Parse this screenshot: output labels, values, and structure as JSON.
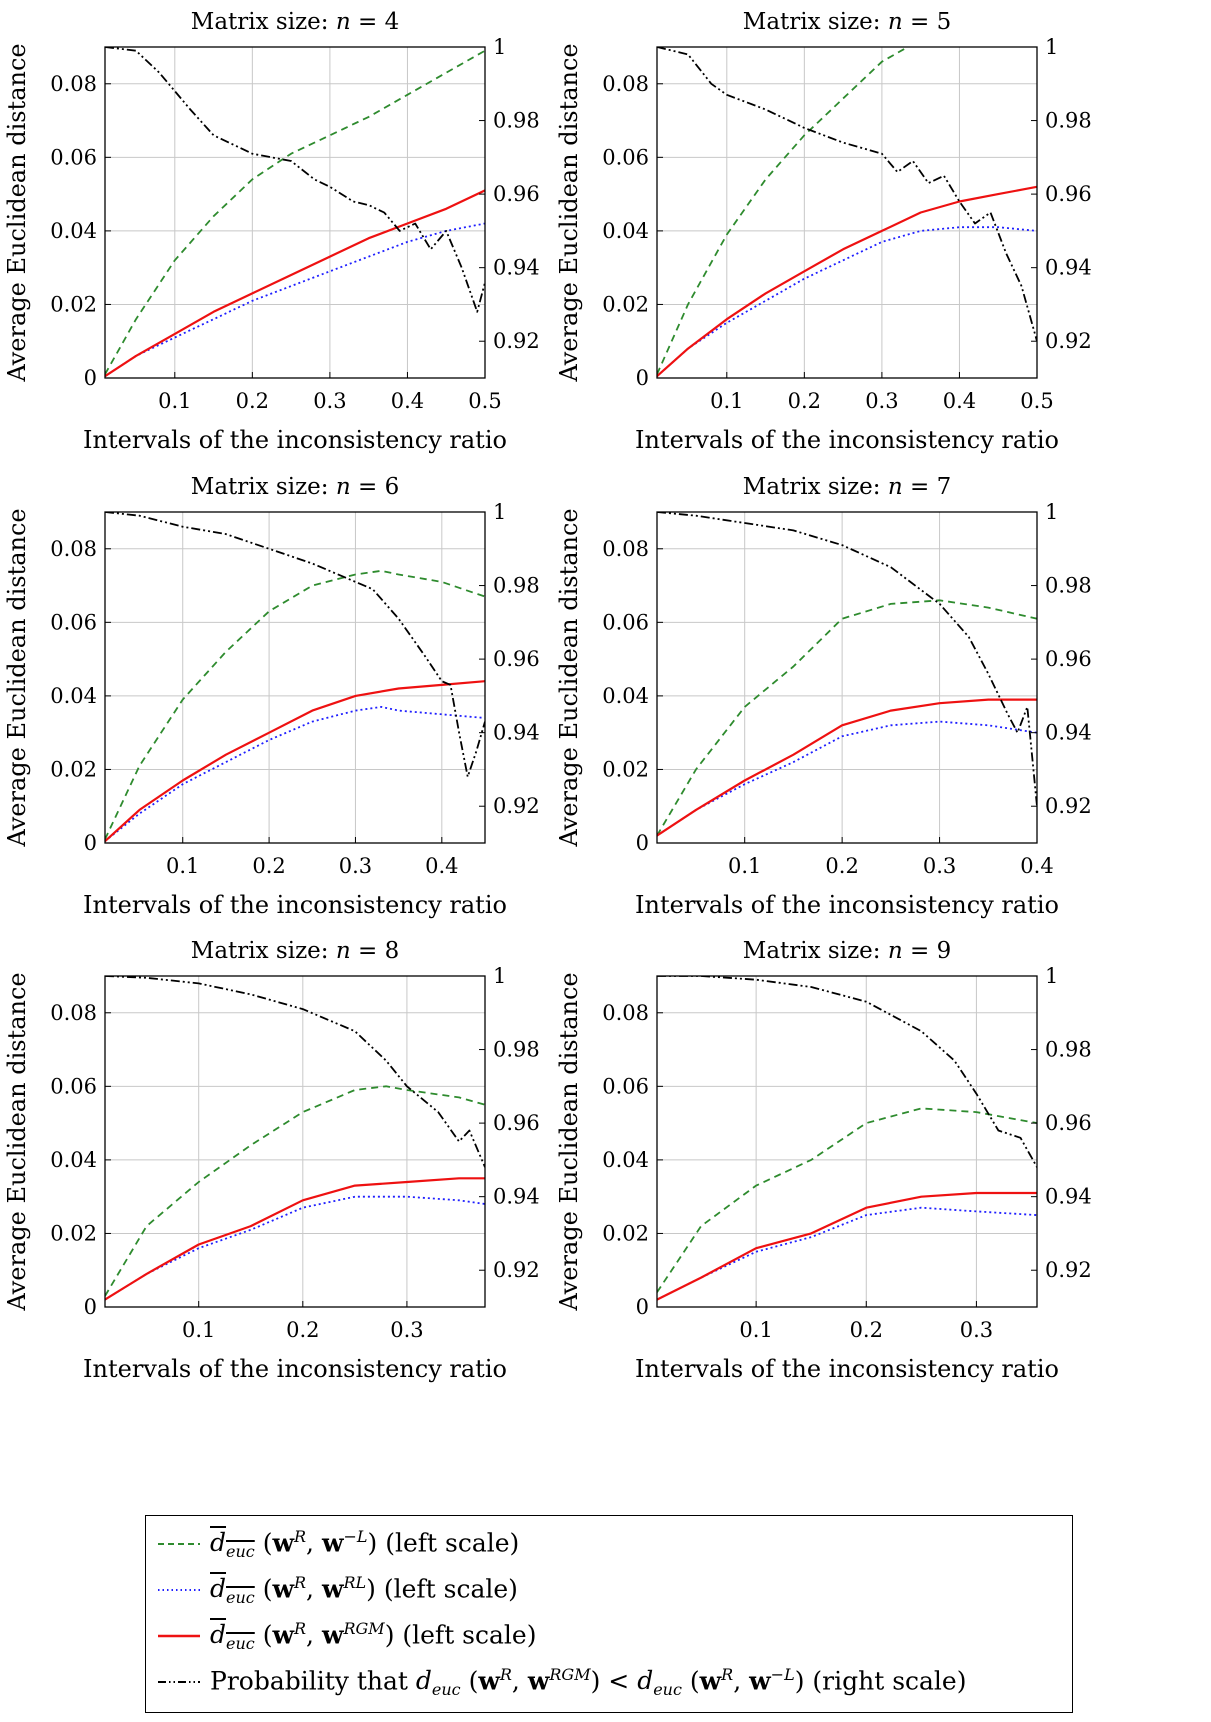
{
  "figure": {
    "xlabel": "Intervals of the inconsistency ratio",
    "ylabel": "Average Euclidean distance",
    "title_prefix": "Matrix size: ",
    "left_ticks": [
      "0",
      "0.02",
      "0.04",
      "0.06",
      "0.08"
    ],
    "right_ticks": [
      "0.92",
      "0.94",
      "0.96",
      "0.98",
      "1"
    ],
    "colors": {
      "green": "#2e8b2e",
      "blue": "#1f1fff",
      "red": "#ee1111",
      "black": "#000000"
    }
  },
  "legend": {
    "items": [
      {
        "label": "d_euc(w^R, w^{-L}) (left scale)",
        "style": "green-dashed"
      },
      {
        "label": "d_euc(w^R, w^{RL}) (left scale)",
        "style": "blue-dotted"
      },
      {
        "label": "d_euc(w^R, w^{RGM}) (left scale)",
        "style": "red-solid"
      },
      {
        "label": "Probability that d_euc(w^R, w^{RGM}) < d_euc(w^R, w^{-L}) (right scale)",
        "style": "black-dashdotdot"
      }
    ],
    "scale_left": "(left scale)",
    "scale_right": "(right scale)",
    "prob_prefix": "Probability that"
  },
  "chart_data": [
    {
      "type": "line",
      "title": "Matrix size: n = 4",
      "n": "4",
      "xlim": [
        0.01,
        0.5
      ],
      "ylim_left": [
        0,
        0.09
      ],
      "ylim_right": [
        0.91,
        1
      ],
      "x_ticks": [
        0.1,
        0.2,
        0.3,
        0.4,
        0.5
      ],
      "xlabel": "Intervals of the inconsistency ratio",
      "ylabel": "Average Euclidean distance",
      "grid": true,
      "series": [
        {
          "name": "d_euc(w^R, w^{-L})",
          "axis": "left",
          "style": "green-dashed",
          "x": [
            0.01,
            0.05,
            0.1,
            0.15,
            0.2,
            0.25,
            0.3,
            0.35,
            0.4,
            0.45,
            0.5
          ],
          "y": [
            0.001,
            0.016,
            0.032,
            0.044,
            0.054,
            0.061,
            0.066,
            0.071,
            0.077,
            0.083,
            0.089
          ]
        },
        {
          "name": "d_euc(w^R, w^{RL})",
          "axis": "left",
          "style": "blue-dotted",
          "x": [
            0.01,
            0.05,
            0.1,
            0.15,
            0.2,
            0.25,
            0.3,
            0.35,
            0.4,
            0.45,
            0.5
          ],
          "y": [
            0.0005,
            0.006,
            0.011,
            0.016,
            0.021,
            0.025,
            0.029,
            0.033,
            0.037,
            0.04,
            0.042
          ]
        },
        {
          "name": "d_euc(w^R, w^{RGM})",
          "axis": "left",
          "style": "red-solid",
          "x": [
            0.01,
            0.05,
            0.1,
            0.15,
            0.2,
            0.25,
            0.3,
            0.35,
            0.4,
            0.45,
            0.5
          ],
          "y": [
            0.0005,
            0.006,
            0.012,
            0.018,
            0.023,
            0.028,
            0.033,
            0.038,
            0.042,
            0.046,
            0.051
          ]
        },
        {
          "name": "Probability that d_euc(w^R, w^{RGM}) < d_euc(w^R, w^{-L})",
          "axis": "right",
          "style": "black-dashdotdot",
          "x": [
            0.01,
            0.05,
            0.08,
            0.1,
            0.12,
            0.15,
            0.2,
            0.25,
            0.28,
            0.3,
            0.33,
            0.35,
            0.37,
            0.39,
            0.41,
            0.43,
            0.45,
            0.47,
            0.49,
            0.5
          ],
          "y": [
            1.0,
            0.999,
            0.993,
            0.988,
            0.983,
            0.976,
            0.971,
            0.969,
            0.964,
            0.962,
            0.958,
            0.957,
            0.955,
            0.95,
            0.952,
            0.945,
            0.95,
            0.94,
            0.928,
            0.936
          ]
        }
      ]
    },
    {
      "type": "line",
      "title": "Matrix size: n = 5",
      "n": "5",
      "xlim": [
        0.01,
        0.5
      ],
      "ylim_left": [
        0,
        0.09
      ],
      "ylim_right": [
        0.91,
        1
      ],
      "x_ticks": [
        0.1,
        0.2,
        0.3,
        0.4,
        0.5
      ],
      "xlabel": "Intervals of the inconsistency ratio",
      "ylabel": "Average Euclidean distance",
      "grid": true,
      "series": [
        {
          "name": "d_euc(w^R, w^{-L})",
          "axis": "left",
          "style": "green-dashed",
          "x": [
            0.01,
            0.05,
            0.1,
            0.15,
            0.2,
            0.25,
            0.3,
            0.35,
            0.4,
            0.45,
            0.48,
            0.5
          ],
          "y": [
            0.001,
            0.02,
            0.039,
            0.054,
            0.066,
            0.076,
            0.086,
            0.092,
            0.094,
            0.093,
            0.09,
            0.091
          ]
        },
        {
          "name": "d_euc(w^R, w^{RL})",
          "axis": "left",
          "style": "blue-dotted",
          "x": [
            0.01,
            0.05,
            0.1,
            0.15,
            0.2,
            0.25,
            0.3,
            0.35,
            0.4,
            0.45,
            0.5
          ],
          "y": [
            0.0005,
            0.008,
            0.015,
            0.021,
            0.027,
            0.032,
            0.037,
            0.04,
            0.041,
            0.041,
            0.04
          ]
        },
        {
          "name": "d_euc(w^R, w^{RGM})",
          "axis": "left",
          "style": "red-solid",
          "x": [
            0.01,
            0.05,
            0.1,
            0.15,
            0.2,
            0.25,
            0.3,
            0.35,
            0.4,
            0.45,
            0.5
          ],
          "y": [
            0.0005,
            0.008,
            0.016,
            0.023,
            0.029,
            0.035,
            0.04,
            0.045,
            0.048,
            0.05,
            0.052
          ]
        },
        {
          "name": "Probability that d_euc(w^R, w^{RGM}) < d_euc(w^R, w^{-L})",
          "axis": "right",
          "style": "black-dashdotdot",
          "x": [
            0.01,
            0.05,
            0.08,
            0.1,
            0.15,
            0.2,
            0.25,
            0.3,
            0.32,
            0.34,
            0.36,
            0.38,
            0.4,
            0.42,
            0.44,
            0.46,
            0.48,
            0.5
          ],
          "y": [
            1.0,
            0.998,
            0.99,
            0.987,
            0.983,
            0.978,
            0.974,
            0.971,
            0.966,
            0.969,
            0.963,
            0.965,
            0.958,
            0.952,
            0.955,
            0.944,
            0.935,
            0.92
          ]
        }
      ]
    },
    {
      "type": "line",
      "title": "Matrix size: n = 6",
      "n": "6",
      "xlim": [
        0.01,
        0.45
      ],
      "ylim_left": [
        0,
        0.09
      ],
      "ylim_right": [
        0.91,
        1
      ],
      "x_ticks": [
        0.1,
        0.2,
        0.3,
        0.4
      ],
      "xlabel": "Intervals of the inconsistency ratio",
      "ylabel": "Average Euclidean distance",
      "grid": true,
      "series": [
        {
          "name": "d_euc(w^R, w^{-L})",
          "axis": "left",
          "style": "green-dashed",
          "x": [
            0.01,
            0.05,
            0.1,
            0.15,
            0.2,
            0.25,
            0.3,
            0.33,
            0.35,
            0.4,
            0.45
          ],
          "y": [
            0.001,
            0.021,
            0.039,
            0.052,
            0.063,
            0.07,
            0.073,
            0.074,
            0.073,
            0.071,
            0.067
          ]
        },
        {
          "name": "d_euc(w^R, w^{RL})",
          "axis": "left",
          "style": "blue-dotted",
          "x": [
            0.01,
            0.05,
            0.1,
            0.15,
            0.2,
            0.25,
            0.3,
            0.33,
            0.35,
            0.4,
            0.45
          ],
          "y": [
            0.0005,
            0.008,
            0.016,
            0.022,
            0.028,
            0.033,
            0.036,
            0.037,
            0.036,
            0.035,
            0.034
          ]
        },
        {
          "name": "d_euc(w^R, w^{RGM})",
          "axis": "left",
          "style": "red-solid",
          "x": [
            0.01,
            0.05,
            0.1,
            0.15,
            0.2,
            0.25,
            0.3,
            0.35,
            0.4,
            0.45
          ],
          "y": [
            0.0005,
            0.009,
            0.017,
            0.024,
            0.03,
            0.036,
            0.04,
            0.042,
            0.043,
            0.044
          ]
        },
        {
          "name": "Probability that d_euc(w^R, w^{RGM}) < d_euc(w^R, w^{-L})",
          "axis": "right",
          "style": "black-dashdotdot",
          "x": [
            0.01,
            0.05,
            0.1,
            0.15,
            0.2,
            0.25,
            0.3,
            0.32,
            0.35,
            0.38,
            0.4,
            0.41,
            0.42,
            0.43,
            0.44,
            0.45
          ],
          "y": [
            1.0,
            0.999,
            0.996,
            0.994,
            0.99,
            0.986,
            0.981,
            0.979,
            0.971,
            0.961,
            0.954,
            0.953,
            0.94,
            0.928,
            0.935,
            0.943
          ]
        }
      ]
    },
    {
      "type": "line",
      "title": "Matrix size: n = 7",
      "n": "7",
      "xlim": [
        0.01,
        0.4
      ],
      "ylim_left": [
        0,
        0.09
      ],
      "ylim_right": [
        0.91,
        1
      ],
      "x_ticks": [
        0.1,
        0.2,
        0.3,
        0.4
      ],
      "xlabel": "Intervals of the inconsistency ratio",
      "ylabel": "Average Euclidean distance",
      "grid": true,
      "series": [
        {
          "name": "d_euc(w^R, w^{-L})",
          "axis": "left",
          "style": "green-dashed",
          "x": [
            0.01,
            0.05,
            0.1,
            0.15,
            0.2,
            0.25,
            0.3,
            0.35,
            0.4
          ],
          "y": [
            0.002,
            0.02,
            0.037,
            0.048,
            0.061,
            0.065,
            0.066,
            0.064,
            0.061
          ]
        },
        {
          "name": "d_euc(w^R, w^{RL})",
          "axis": "left",
          "style": "blue-dotted",
          "x": [
            0.01,
            0.05,
            0.1,
            0.15,
            0.2,
            0.25,
            0.3,
            0.35,
            0.4
          ],
          "y": [
            0.002,
            0.009,
            0.016,
            0.022,
            0.029,
            0.032,
            0.033,
            0.032,
            0.03
          ]
        },
        {
          "name": "d_euc(w^R, w^{RGM})",
          "axis": "left",
          "style": "red-solid",
          "x": [
            0.01,
            0.05,
            0.1,
            0.15,
            0.2,
            0.25,
            0.3,
            0.35,
            0.4
          ],
          "y": [
            0.002,
            0.009,
            0.017,
            0.024,
            0.032,
            0.036,
            0.038,
            0.039,
            0.039
          ]
        },
        {
          "name": "Probability that d_euc(w^R, w^{RGM}) < d_euc(w^R, w^{-L})",
          "axis": "right",
          "style": "black-dashdotdot",
          "x": [
            0.01,
            0.05,
            0.1,
            0.15,
            0.2,
            0.25,
            0.3,
            0.33,
            0.35,
            0.37,
            0.38,
            0.39,
            0.4
          ],
          "y": [
            1.0,
            0.999,
            0.997,
            0.995,
            0.991,
            0.985,
            0.975,
            0.966,
            0.956,
            0.945,
            0.94,
            0.947,
            0.92
          ]
        }
      ]
    },
    {
      "type": "line",
      "title": "Matrix size: n = 8",
      "n": "8",
      "xlim": [
        0.01,
        0.375
      ],
      "ylim_left": [
        0,
        0.09
      ],
      "ylim_right": [
        0.91,
        1
      ],
      "x_ticks": [
        0.1,
        0.2,
        0.3
      ],
      "xlabel": "Intervals of the inconsistency ratio",
      "ylabel": "Average Euclidean distance",
      "grid": true,
      "series": [
        {
          "name": "d_euc(w^R, w^{-L})",
          "axis": "left",
          "style": "green-dashed",
          "x": [
            0.01,
            0.05,
            0.1,
            0.15,
            0.2,
            0.25,
            0.28,
            0.3,
            0.35,
            0.375
          ],
          "y": [
            0.003,
            0.022,
            0.034,
            0.044,
            0.053,
            0.059,
            0.06,
            0.059,
            0.057,
            0.055
          ]
        },
        {
          "name": "d_euc(w^R, w^{RL})",
          "axis": "left",
          "style": "blue-dotted",
          "x": [
            0.01,
            0.05,
            0.1,
            0.15,
            0.2,
            0.25,
            0.3,
            0.35,
            0.375
          ],
          "y": [
            0.002,
            0.009,
            0.016,
            0.021,
            0.027,
            0.03,
            0.03,
            0.029,
            0.028
          ]
        },
        {
          "name": "d_euc(w^R, w^{RGM})",
          "axis": "left",
          "style": "red-solid",
          "x": [
            0.01,
            0.05,
            0.1,
            0.15,
            0.2,
            0.25,
            0.3,
            0.35,
            0.375
          ],
          "y": [
            0.002,
            0.009,
            0.017,
            0.022,
            0.029,
            0.033,
            0.034,
            0.035,
            0.035
          ]
        },
        {
          "name": "Probability that d_euc(w^R, w^{RGM}) < d_euc(w^R, w^{-L})",
          "axis": "right",
          "style": "black-dashdotdot",
          "x": [
            0.01,
            0.05,
            0.1,
            0.15,
            0.2,
            0.25,
            0.28,
            0.3,
            0.33,
            0.35,
            0.36,
            0.375
          ],
          "y": [
            1.0,
            0.9995,
            0.998,
            0.995,
            0.991,
            0.985,
            0.977,
            0.97,
            0.963,
            0.955,
            0.958,
            0.948
          ]
        }
      ]
    },
    {
      "type": "line",
      "title": "Matrix size: n = 9",
      "n": "9",
      "xlim": [
        0.01,
        0.355
      ],
      "ylim_left": [
        0,
        0.09
      ],
      "ylim_right": [
        0.91,
        1
      ],
      "x_ticks": [
        0.1,
        0.2,
        0.3
      ],
      "xlabel": "Intervals of the inconsistency ratio",
      "ylabel": "Average Euclidean distance",
      "grid": true,
      "series": [
        {
          "name": "d_euc(w^R, w^{-L})",
          "axis": "left",
          "style": "green-dashed",
          "x": [
            0.01,
            0.05,
            0.1,
            0.15,
            0.2,
            0.25,
            0.3,
            0.355
          ],
          "y": [
            0.004,
            0.022,
            0.033,
            0.04,
            0.05,
            0.054,
            0.053,
            0.05
          ]
        },
        {
          "name": "d_euc(w^R, w^{RL})",
          "axis": "left",
          "style": "blue-dotted",
          "x": [
            0.01,
            0.05,
            0.1,
            0.15,
            0.2,
            0.25,
            0.3,
            0.355
          ],
          "y": [
            0.002,
            0.008,
            0.015,
            0.019,
            0.025,
            0.027,
            0.026,
            0.025
          ]
        },
        {
          "name": "d_euc(w^R, w^{RGM})",
          "axis": "left",
          "style": "red-solid",
          "x": [
            0.01,
            0.05,
            0.1,
            0.15,
            0.2,
            0.25,
            0.3,
            0.355
          ],
          "y": [
            0.002,
            0.008,
            0.016,
            0.02,
            0.027,
            0.03,
            0.031,
            0.031
          ]
        },
        {
          "name": "Probability that d_euc(w^R, w^{RGM}) < d_euc(w^R, w^{-L})",
          "axis": "right",
          "style": "black-dashdotdot",
          "x": [
            0.01,
            0.05,
            0.1,
            0.15,
            0.2,
            0.25,
            0.28,
            0.3,
            0.32,
            0.34,
            0.355
          ],
          "y": [
            1.0,
            1.0,
            0.999,
            0.997,
            0.993,
            0.985,
            0.977,
            0.968,
            0.958,
            0.956,
            0.948
          ]
        }
      ]
    }
  ]
}
